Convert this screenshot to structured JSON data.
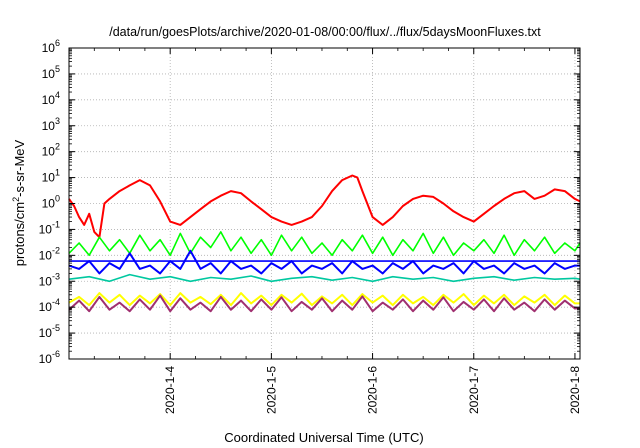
{
  "chart_data": {
    "type": "line",
    "title": "/data/run/goesPlots/archive/2020-01-08/00:00/flux/../flux/5daysMoonFluxes.txt",
    "xlabel": "Coordinated Universal Time (UTC)",
    "ylabel_parts": {
      "pre": "protons/cm",
      "sup": "2",
      "post": "-s-sr-MeV"
    },
    "yscale": "log",
    "ylim": [
      1e-06,
      1000000.0
    ],
    "xlim": [
      3.0,
      8.05
    ],
    "grid": true,
    "legend": "none",
    "ytick_labels": [
      {
        "base": "10",
        "exp": "-6"
      },
      {
        "base": "10",
        "exp": "-5"
      },
      {
        "base": "10",
        "exp": "-4"
      },
      {
        "base": "10",
        "exp": "-3"
      },
      {
        "base": "10",
        "exp": "-2"
      },
      {
        "base": "10",
        "exp": "-1"
      },
      {
        "base": "10",
        "exp": "0"
      },
      {
        "base": "10",
        "exp": "1"
      },
      {
        "base": "10",
        "exp": "2"
      },
      {
        "base": "10",
        "exp": "3"
      },
      {
        "base": "10",
        "exp": "4"
      },
      {
        "base": "10",
        "exp": "5"
      },
      {
        "base": "10",
        "exp": "6"
      }
    ],
    "xticks": [
      {
        "value": 4,
        "label": "2020-1-4"
      },
      {
        "value": 5,
        "label": "2020-1-5"
      },
      {
        "value": 6,
        "label": "2020-1-6"
      },
      {
        "value": 7,
        "label": "2020-1-7"
      },
      {
        "value": 8,
        "label": "2020-1-8"
      }
    ],
    "series": [
      {
        "color": "#ff0000",
        "width": 2,
        "x": [
          3.0,
          3.05,
          3.1,
          3.15,
          3.2,
          3.25,
          3.3,
          3.35,
          3.4,
          3.5,
          3.6,
          3.7,
          3.8,
          3.9,
          4.0,
          4.1,
          4.2,
          4.3,
          4.4,
          4.5,
          4.6,
          4.7,
          4.8,
          4.9,
          5.0,
          5.1,
          5.2,
          5.3,
          5.4,
          5.5,
          5.6,
          5.7,
          5.8,
          5.85,
          5.9,
          6.0,
          6.1,
          6.2,
          6.3,
          6.4,
          6.5,
          6.6,
          6.7,
          6.8,
          6.9,
          7.0,
          7.1,
          7.2,
          7.3,
          7.4,
          7.5,
          7.6,
          7.7,
          7.8,
          7.9,
          8.0,
          8.05
        ],
        "y": [
          1.5,
          0.8,
          0.3,
          0.15,
          0.4,
          0.08,
          0.05,
          1.0,
          1.5,
          3.0,
          5.0,
          8.0,
          5.0,
          1.2,
          0.2,
          0.15,
          0.3,
          0.6,
          1.2,
          2.0,
          3.0,
          2.5,
          1.2,
          0.6,
          0.3,
          0.2,
          0.15,
          0.2,
          0.3,
          0.8,
          3.0,
          8.0,
          12.0,
          10.0,
          3.0,
          0.3,
          0.15,
          0.3,
          0.8,
          1.5,
          2.0,
          1.8,
          1.0,
          0.5,
          0.3,
          0.2,
          0.4,
          0.8,
          1.5,
          2.5,
          3.0,
          1.5,
          2.0,
          3.5,
          3.0,
          1.5,
          1.2
        ]
      },
      {
        "color": "#00ff00",
        "width": 1.6,
        "x": [
          3.0,
          3.1,
          3.2,
          3.3,
          3.4,
          3.5,
          3.6,
          3.7,
          3.8,
          3.9,
          4.0,
          4.1,
          4.2,
          4.3,
          4.4,
          4.5,
          4.6,
          4.7,
          4.8,
          4.9,
          5.0,
          5.1,
          5.2,
          5.3,
          5.4,
          5.5,
          5.6,
          5.7,
          5.8,
          5.9,
          6.0,
          6.1,
          6.2,
          6.3,
          6.4,
          6.5,
          6.6,
          6.7,
          6.8,
          6.9,
          7.0,
          7.1,
          7.2,
          7.3,
          7.4,
          7.5,
          7.6,
          7.7,
          7.8,
          7.9,
          8.0,
          8.05
        ],
        "y": [
          0.012,
          0.03,
          0.01,
          0.05,
          0.015,
          0.04,
          0.012,
          0.06,
          0.015,
          0.04,
          0.01,
          0.07,
          0.012,
          0.05,
          0.02,
          0.08,
          0.015,
          0.05,
          0.012,
          0.04,
          0.01,
          0.06,
          0.015,
          0.05,
          0.012,
          0.03,
          0.01,
          0.04,
          0.015,
          0.06,
          0.012,
          0.05,
          0.01,
          0.04,
          0.015,
          0.07,
          0.012,
          0.05,
          0.01,
          0.03,
          0.015,
          0.04,
          0.012,
          0.06,
          0.01,
          0.04,
          0.015,
          0.05,
          0.012,
          0.03,
          0.015,
          0.03
        ]
      },
      {
        "color": "#0000ff",
        "width": 2,
        "x": [
          3.0,
          3.1,
          3.2,
          3.3,
          3.4,
          3.5,
          3.6,
          3.7,
          3.8,
          3.9,
          4.0,
          4.1,
          4.2,
          4.3,
          4.4,
          4.5,
          4.6,
          4.7,
          4.8,
          4.9,
          5.0,
          5.1,
          5.2,
          5.3,
          5.4,
          5.5,
          5.6,
          5.7,
          5.8,
          5.9,
          6.0,
          6.1,
          6.2,
          6.3,
          6.4,
          6.5,
          6.6,
          6.7,
          6.8,
          6.9,
          7.0,
          7.1,
          7.2,
          7.3,
          7.4,
          7.5,
          7.6,
          7.7,
          7.8,
          7.9,
          8.0,
          8.05
        ],
        "y": [
          0.004,
          0.003,
          0.006,
          0.002,
          0.005,
          0.003,
          0.012,
          0.003,
          0.004,
          0.002,
          0.006,
          0.003,
          0.015,
          0.003,
          0.005,
          0.002,
          0.006,
          0.003,
          0.004,
          0.002,
          0.005,
          0.003,
          0.006,
          0.002,
          0.004,
          0.003,
          0.005,
          0.002,
          0.006,
          0.003,
          0.004,
          0.002,
          0.005,
          0.003,
          0.006,
          0.002,
          0.004,
          0.003,
          0.005,
          0.002,
          0.006,
          0.003,
          0.004,
          0.002,
          0.005,
          0.003,
          0.004,
          0.002,
          0.005,
          0.003,
          0.004,
          0.004
        ]
      },
      {
        "color": "#0000ff",
        "width": 1.6,
        "x": [
          3.0,
          8.05
        ],
        "y": [
          0.006,
          0.006
        ]
      },
      {
        "color": "#00c8a0",
        "width": 1.6,
        "x": [
          3.0,
          3.2,
          3.4,
          3.6,
          3.8,
          4.0,
          4.2,
          4.4,
          4.6,
          4.8,
          5.0,
          5.2,
          5.4,
          5.6,
          5.8,
          6.0,
          6.2,
          6.4,
          6.6,
          6.8,
          7.0,
          7.2,
          7.4,
          7.6,
          7.8,
          8.0,
          8.05
        ],
        "y": [
          0.0012,
          0.0015,
          0.001,
          0.0018,
          0.0012,
          0.0015,
          0.001,
          0.0014,
          0.0012,
          0.0016,
          0.001,
          0.0013,
          0.0015,
          0.0011,
          0.0014,
          0.001,
          0.0015,
          0.0012,
          0.0014,
          0.001,
          0.0013,
          0.0015,
          0.0011,
          0.0014,
          0.0012,
          0.0013,
          0.0012
        ]
      },
      {
        "color": "#ffff00",
        "width": 2,
        "x": [
          3.0,
          3.1,
          3.2,
          3.3,
          3.4,
          3.5,
          3.6,
          3.7,
          3.8,
          3.9,
          4.0,
          4.1,
          4.2,
          4.3,
          4.4,
          4.5,
          4.6,
          4.7,
          4.8,
          4.9,
          5.0,
          5.1,
          5.2,
          5.3,
          5.4,
          5.5,
          5.6,
          5.7,
          5.8,
          5.9,
          6.0,
          6.1,
          6.2,
          6.3,
          6.4,
          6.5,
          6.6,
          6.7,
          6.8,
          6.9,
          7.0,
          7.1,
          7.2,
          7.3,
          7.4,
          7.5,
          7.6,
          7.7,
          7.8,
          7.9,
          8.0,
          8.05
        ],
        "y": [
          0.00015,
          0.00025,
          0.00012,
          0.00035,
          0.00015,
          0.0003,
          0.00012,
          0.00028,
          0.00014,
          0.00032,
          0.00012,
          0.00035,
          0.00015,
          0.00025,
          0.00013,
          0.0003,
          0.00012,
          0.00035,
          0.00014,
          0.00028,
          0.00012,
          0.0003,
          0.00015,
          0.00033,
          0.00012,
          0.00026,
          0.00014,
          0.0003,
          0.00012,
          0.00032,
          0.00015,
          0.00028,
          0.00012,
          0.0003,
          0.00014,
          0.00025,
          0.00012,
          0.0003,
          0.00015,
          0.00032,
          0.00012,
          0.00028,
          0.00014,
          0.0003,
          0.00012,
          0.00026,
          0.00015,
          0.0003,
          0.00012,
          0.00028,
          0.00014,
          0.00014
        ]
      },
      {
        "color": "#a03070",
        "width": 2,
        "x": [
          3.0,
          3.1,
          3.2,
          3.3,
          3.4,
          3.5,
          3.6,
          3.7,
          3.8,
          3.9,
          4.0,
          4.1,
          4.2,
          4.3,
          4.4,
          4.5,
          4.6,
          4.7,
          4.8,
          4.9,
          5.0,
          5.1,
          5.2,
          5.3,
          5.4,
          5.5,
          5.6,
          5.7,
          5.8,
          5.9,
          6.0,
          6.1,
          6.2,
          6.3,
          6.4,
          6.5,
          6.6,
          6.7,
          6.8,
          6.9,
          7.0,
          7.1,
          7.2,
          7.3,
          7.4,
          7.5,
          7.6,
          7.7,
          7.8,
          7.9,
          8.0,
          8.05
        ],
        "y": [
          8e-05,
          0.00018,
          7e-05,
          0.00025,
          8e-05,
          0.00015,
          7e-05,
          0.0002,
          8e-05,
          0.00028,
          7e-05,
          0.00022,
          8e-05,
          0.00015,
          7e-05,
          0.00025,
          8e-05,
          0.00018,
          7e-05,
          0.0002,
          8e-05,
          0.00024,
          7e-05,
          0.00016,
          8e-05,
          0.00022,
          7e-05,
          0.00018,
          8e-05,
          0.00026,
          7e-05,
          0.00015,
          8e-05,
          0.0002,
          7e-05,
          0.00018,
          8e-05,
          0.00024,
          7e-05,
          0.00016,
          8e-05,
          0.0002,
          7e-05,
          0.00022,
          8e-05,
          0.00015,
          7e-05,
          0.0002,
          8e-05,
          0.00018,
          9e-05,
          9e-05
        ]
      }
    ]
  }
}
